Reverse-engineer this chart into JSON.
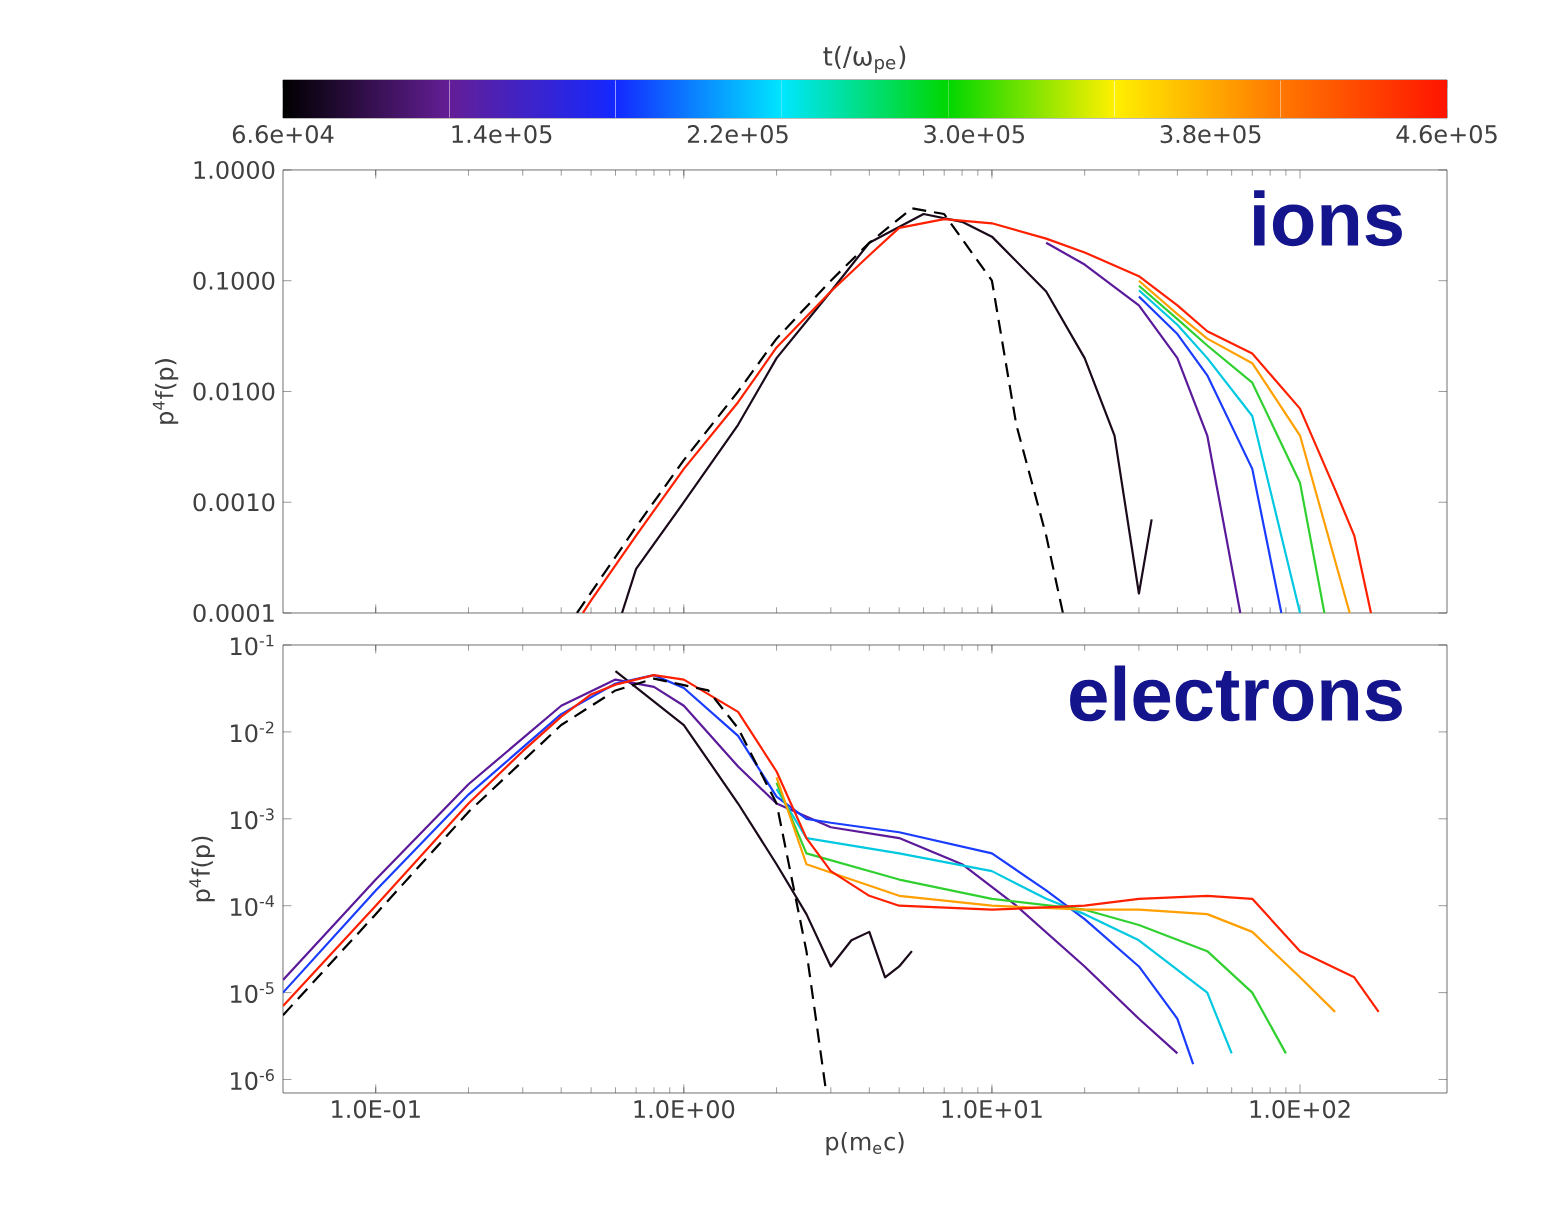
{
  "chart_data": [
    {
      "type": "line",
      "log": "xy",
      "tick_labels": "y",
      "ylabel": "p$^{4}$f(p)",
      "clabel": "t(/ω$_{pe}$)",
      "clim": [
        66000,
        460000
      ],
      "cticks": [
        {
          "value": 66000,
          "label": "6.6e+04"
        },
        {
          "value": 140000,
          "label": "1.4e+05"
        },
        {
          "value": 220000,
          "label": "2.2e+05"
        },
        {
          "value": 300000,
          "label": "3.0e+05"
        },
        {
          "value": 380000,
          "label": "3.8e+05"
        },
        {
          "value": 460000,
          "label": "4.6e+05"
        }
      ],
      "xlim": [
        0.05,
        300
      ],
      "ylim": [
        0.0001,
        1
      ],
      "xticks": [
        0.1,
        1,
        10,
        100
      ],
      "yticks": [
        {
          "value": 1,
          "label": "1.0000"
        },
        {
          "value": 0.1,
          "label": "0.1000"
        },
        {
          "value": 0.01,
          "label": "0.0100"
        },
        {
          "value": 0.001,
          "label": "0.0010"
        },
        {
          "value": 0.0001,
          "label": "0.0001"
        }
      ],
      "annotations": [
        "ions"
      ],
      "series": [
        {
          "color": "#1a0a1a",
          "x": [
            0.63,
            0.7,
            1,
            1.5,
            2,
            3,
            4,
            6,
            8,
            10,
            15,
            20,
            25,
            30,
            33
          ],
          "values": [
            0.0001,
            0.00025,
            0.001,
            0.005,
            0.02,
            0.08,
            0.22,
            0.4,
            0.34,
            0.25,
            0.08,
            0.02,
            0.004,
            0.00015,
            0.0007
          ]
        },
        {
          "color": "#5a1a9a",
          "x": [
            15,
            20,
            30,
            40,
            50,
            64
          ],
          "values": [
            0.22,
            0.14,
            0.06,
            0.02,
            0.004,
            0.0001
          ]
        },
        {
          "color": "#1a3cff",
          "x": [
            30,
            40,
            50,
            70,
            87
          ],
          "values": [
            0.072,
            0.033,
            0.014,
            0.002,
            0.0001
          ]
        },
        {
          "color": "#00c8e0",
          "x": [
            30,
            40,
            50,
            70,
            100
          ],
          "values": [
            0.082,
            0.04,
            0.02,
            0.006,
            0.0001
          ]
        },
        {
          "color": "#30d030",
          "x": [
            30,
            40,
            50,
            70,
            100,
            120
          ],
          "values": [
            0.09,
            0.045,
            0.026,
            0.012,
            0.0015,
            0.0001
          ]
        },
        {
          "color": "#ffa000",
          "x": [
            30,
            40,
            50,
            70,
            100,
            145
          ],
          "values": [
            0.1,
            0.05,
            0.03,
            0.018,
            0.004,
            0.0001
          ]
        },
        {
          "color": "#ff2000",
          "x": [
            0.47,
            0.5,
            0.7,
            1,
            1.5,
            2,
            3,
            4,
            5,
            7,
            10,
            15,
            20,
            30,
            40,
            50,
            70,
            100,
            130,
            150,
            170
          ],
          "values": [
            0.0001,
            0.00013,
            0.0005,
            0.002,
            0.008,
            0.025,
            0.08,
            0.17,
            0.3,
            0.36,
            0.33,
            0.24,
            0.18,
            0.11,
            0.06,
            0.035,
            0.022,
            0.007,
            0.0013,
            0.0005,
            0.0001
          ]
        },
        {
          "color": "#000000",
          "line_style": "dashed",
          "x": [
            0.45,
            0.7,
            1,
            1.5,
            2,
            3,
            4,
            5.5,
            7,
            10,
            12,
            15,
            17
          ],
          "values": [
            0.0001,
            0.0006,
            0.0024,
            0.01,
            0.03,
            0.1,
            0.22,
            0.45,
            0.4,
            0.1,
            0.005,
            0.0005,
            0.0001
          ]
        }
      ]
    },
    {
      "type": "line",
      "log": "xy",
      "xlabel": "p(m$_{e}$c)",
      "ylabel": "p$^{4}$f(p)",
      "xlim": [
        0.05,
        300
      ],
      "ylim": [
        7e-07,
        0.1
      ],
      "xticks": [
        {
          "value": 0.1,
          "label": "1.0E-01"
        },
        {
          "value": 1,
          "label": "1.0E+00"
        },
        {
          "value": 10,
          "label": "1.0E+01"
        },
        {
          "value": 100,
          "label": "1.0E+02"
        }
      ],
      "yticks": [
        {
          "value": 0.1,
          "label": "10$^{-1}$"
        },
        {
          "value": 0.01,
          "label": "10$^{-2}$"
        },
        {
          "value": 0.001,
          "label": "10$^{-3}$"
        },
        {
          "value": 0.0001,
          "label": "10$^{-4}$"
        },
        {
          "value": 1e-05,
          "label": "10$^{-5}$"
        },
        {
          "value": 1e-06,
          "label": "10$^{-6}$"
        }
      ],
      "annotations": [
        "electrons"
      ],
      "series": [
        {
          "color": "#1a0a1a",
          "x": [
            0.6,
            1,
            1.5,
            2,
            2.5,
            3,
            3.5,
            4,
            4.5,
            5,
            5.5
          ],
          "values": [
            0.05,
            0.012,
            0.0015,
            0.0003,
            8e-05,
            2e-05,
            4e-05,
            5e-05,
            1.5e-05,
            2e-05,
            3e-05
          ]
        },
        {
          "color": "#5a1a9a",
          "x": [
            0.05,
            0.1,
            0.2,
            0.4,
            0.6,
            0.8,
            1,
            1.5,
            2,
            3,
            5,
            8,
            12,
            20,
            30,
            40
          ],
          "values": [
            1.4e-05,
            0.0002,
            0.0025,
            0.02,
            0.04,
            0.033,
            0.02,
            0.004,
            0.0015,
            0.0008,
            0.0006,
            0.0003,
            0.0001,
            2e-05,
            5e-06,
            2e-06
          ]
        },
        {
          "color": "#1a3cff",
          "x": [
            0.05,
            0.1,
            0.2,
            0.4,
            0.6,
            0.8,
            1,
            1.5,
            2,
            2.5,
            3,
            5,
            10,
            15,
            20,
            30,
            40,
            45
          ],
          "values": [
            1e-05,
            0.00015,
            0.0019,
            0.016,
            0.036,
            0.045,
            0.032,
            0.009,
            0.0018,
            0.001,
            0.0009,
            0.0007,
            0.0004,
            0.00015,
            7e-05,
            2e-05,
            5e-06,
            1.5e-06
          ]
        },
        {
          "color": "#00c8e0",
          "x": [
            2,
            2.5,
            5,
            10,
            15,
            20,
            30,
            50,
            60
          ],
          "values": [
            0.0022,
            0.0006,
            0.0004,
            0.00025,
            0.00012,
            8e-05,
            4e-05,
            1e-05,
            2e-06
          ]
        },
        {
          "color": "#30d030",
          "x": [
            2,
            2.5,
            5,
            10,
            20,
            30,
            50,
            70,
            90
          ],
          "values": [
            0.0026,
            0.0004,
            0.0002,
            0.00012,
            9e-05,
            6e-05,
            3e-05,
            1e-05,
            2e-06
          ]
        },
        {
          "color": "#ffa000",
          "x": [
            2,
            2.5,
            5,
            10,
            20,
            30,
            50,
            70,
            100,
            130
          ],
          "values": [
            0.003,
            0.0003,
            0.00013,
            0.0001,
            9e-05,
            9e-05,
            8e-05,
            5e-05,
            1.5e-05,
            6e-06
          ]
        },
        {
          "color": "#ff2000",
          "x": [
            0.05,
            0.1,
            0.2,
            0.3,
            0.4,
            0.5,
            0.6,
            0.8,
            1,
            1.5,
            2,
            2.5,
            3,
            4,
            5,
            10,
            20,
            30,
            50,
            70,
            100,
            150,
            180
          ],
          "values": [
            7e-06,
            0.0001,
            0.0015,
            0.006,
            0.015,
            0.027,
            0.035,
            0.045,
            0.04,
            0.017,
            0.0035,
            0.0006,
            0.00025,
            0.00013,
            0.0001,
            9e-05,
            0.0001,
            0.00012,
            0.00013,
            0.00012,
            3e-05,
            1.5e-05,
            6e-06
          ]
        },
        {
          "color": "#000000",
          "line_style": "dashed",
          "x": [
            0.05,
            0.1,
            0.2,
            0.4,
            0.6,
            0.8,
            1.2,
            1.5,
            2,
            2.5,
            2.9
          ],
          "values": [
            5.5e-06,
            8e-05,
            0.0012,
            0.012,
            0.03,
            0.041,
            0.03,
            0.011,
            0.0015,
            3e-05,
            7e-07
          ]
        }
      ]
    }
  ]
}
